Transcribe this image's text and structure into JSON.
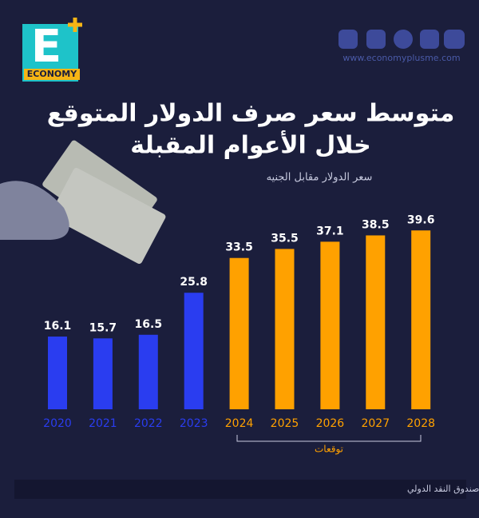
{
  "chart_data": {
    "type": "bar",
    "title": [
      "متوسط سعر صرف الدولار المتوقع",
      "خلال الأعوام المقبلة"
    ],
    "subtitle": "سعر الدولار مقابل الجنيه",
    "categories": [
      "2020",
      "2021",
      "2022",
      "2023",
      "2024",
      "2025",
      "2026",
      "2027",
      "2028"
    ],
    "values": [
      16.1,
      15.7,
      16.5,
      25.8,
      33.5,
      35.5,
      37.1,
      38.5,
      39.6
    ],
    "colors": [
      "#2a3df0",
      "#2a3df0",
      "#2a3df0",
      "#2a3df0",
      "#ffa100",
      "#ffa100",
      "#ffa100",
      "#ffa100",
      "#ffa100"
    ],
    "annotation": "توقعات",
    "source": "المصدر: تقرير الاتجاهات الاقتصادية لمصر في الفترة الرئاسية الجديدة نقلا عن صندوق النقد الدولي"
  },
  "header": {
    "logo_letter": "E",
    "logo_word": "ECONOMY",
    "website": "www.economyplusme.com"
  }
}
